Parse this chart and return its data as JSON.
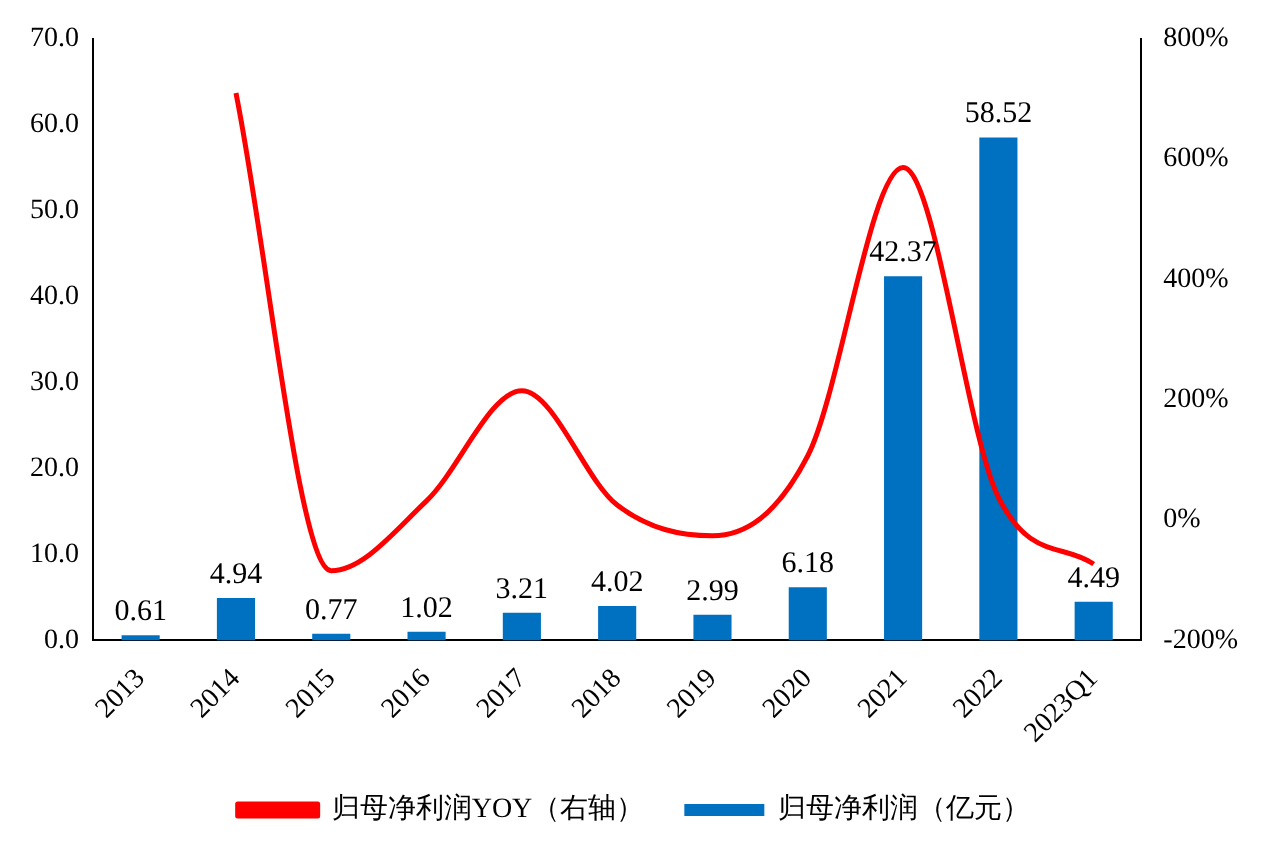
{
  "chart_data": {
    "type": "bar",
    "categories": [
      "2013",
      "2014",
      "2015",
      "2016",
      "2017",
      "2018",
      "2019",
      "2020",
      "2021",
      "2022",
      "2023Q1"
    ],
    "series": [
      {
        "name": "归母净利润（亿元）",
        "color": "#0070c0",
        "values": [
          0.61,
          4.94,
          0.77,
          1.02,
          3.21,
          4.02,
          2.99,
          6.18,
          42.37,
          58.52,
          4.49
        ],
        "value_labels": [
          "0.61",
          "4.94",
          "0.77",
          "1.02",
          "3.21",
          "4.02",
          "2.99",
          "6.18",
          "42.37",
          "58.52",
          "4.49"
        ]
      },
      {
        "name": "归母净利润YOY（右轴）",
        "type": "line",
        "axis": "y2",
        "color": "#ff0000",
        "marker": "none",
        "values": [
          null,
          710,
          -84,
          32,
          215,
          25,
          -26,
          107,
          586,
          38,
          -73
        ]
      }
    ],
    "ylim": [
      0,
      70
    ],
    "yticks": [
      {
        "value": 0,
        "label": "0.0"
      },
      {
        "value": 10,
        "label": "10.0"
      },
      {
        "value": 20,
        "label": "20.0"
      },
      {
        "value": 30,
        "label": "30.0"
      },
      {
        "value": 40,
        "label": "40.0"
      },
      {
        "value": 50,
        "label": "50.0"
      },
      {
        "value": 60,
        "label": "60.0"
      },
      {
        "value": 70,
        "label": "70.0"
      }
    ],
    "y2lim": [
      -200,
      800
    ],
    "y2ticks": [
      {
        "value": -200,
        "label": "-200%"
      },
      {
        "value": 0,
        "label": "0%"
      },
      {
        "value": 200,
        "label": "200%"
      },
      {
        "value": 400,
        "label": "400%"
      },
      {
        "value": 600,
        "label": "600%"
      },
      {
        "value": 800,
        "label": "800%"
      }
    ],
    "grid": false,
    "legend": "bottom"
  }
}
